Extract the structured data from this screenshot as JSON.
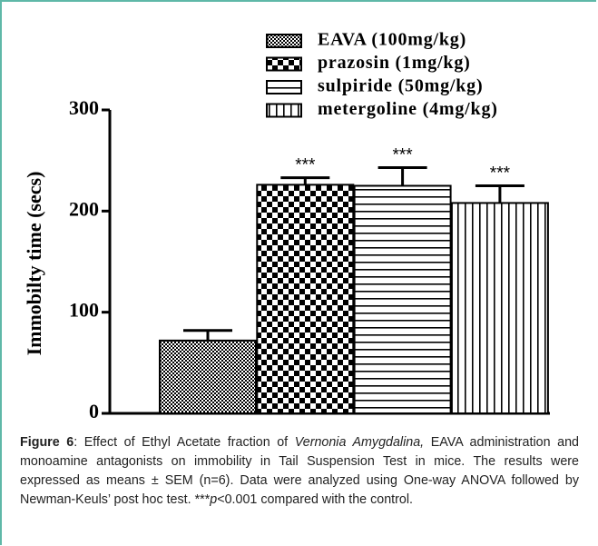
{
  "chart_data": {
    "type": "bar",
    "ylabel": "Immobilty time (secs)",
    "ylim": [
      0,
      300
    ],
    "yticks": [
      0,
      100,
      200,
      300
    ],
    "color": "#000000",
    "series": [
      {
        "name": "EAVA (100mg/kg)",
        "values": [
          72
        ],
        "errors": [
          10
        ]
      },
      {
        "name": "prazosin (1mg/kg)",
        "values": [
          226
        ],
        "errors": [
          7
        ],
        "annotation": "***"
      },
      {
        "name": "sulpiride (50mg/kg)",
        "values": [
          225
        ],
        "errors": [
          18
        ],
        "annotation": "***"
      },
      {
        "name": "metergoline (4mg/kg)",
        "values": [
          208
        ],
        "errors": [
          17
        ],
        "annotation": "***"
      }
    ]
  },
  "caption": {
    "label": "Figure 6",
    "parts": [
      ": Effect of Ethyl Acetate fraction of ",
      "Vernonia Amygdalina,",
      " EAVA administration and monoamine antagonists on immobility in Tail Suspension Test in mice. The results were expressed as means ± SEM (n=6). Data were analyzed using One-way ANOVA followed by Newman-Keuls’ post hoc test. ",
      "***",
      "p",
      "<0.001 compared with the control."
    ]
  }
}
